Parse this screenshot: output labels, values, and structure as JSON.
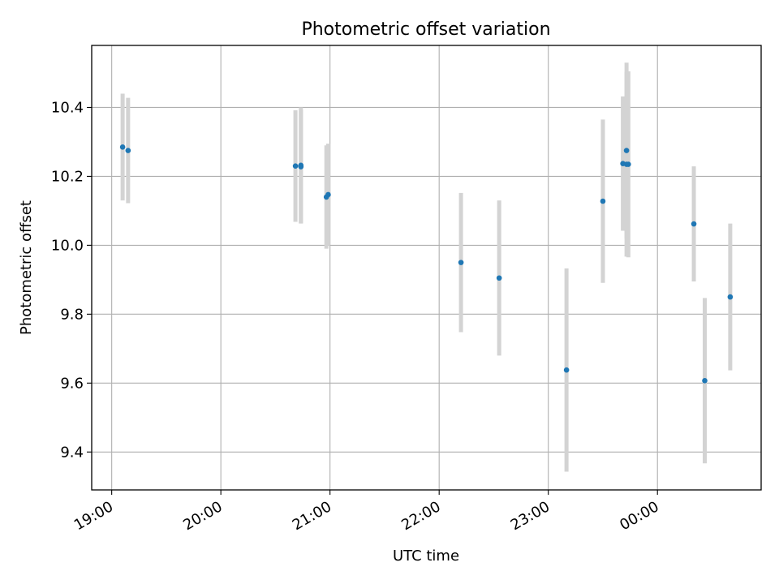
{
  "chart_data": {
    "type": "scatter",
    "title": "Photometric offset variation",
    "xlabel": "UTC time",
    "ylabel": "Photometric offset",
    "grid": true,
    "legend": "none",
    "x_ticks": [
      "19:00",
      "20:00",
      "21:00",
      "22:00",
      "23:00",
      "00:00"
    ],
    "y_ticks": [
      "9.4",
      "9.6",
      "9.8",
      "10.0",
      "10.2",
      "10.4"
    ],
    "xlim": [
      "18:49",
      "00:57"
    ],
    "ylim": [
      9.29,
      10.58
    ],
    "series": [
      {
        "marker_color": "#1f77b4",
        "errorbar_color": "#d3d3d3",
        "points": [
          {
            "t": "19:06",
            "y": 10.285,
            "err": 0.155
          },
          {
            "t": "19:09",
            "y": 10.275,
            "err": 0.153
          },
          {
            "t": "20:41",
            "y": 10.23,
            "err": 0.162
          },
          {
            "t": "20:44",
            "y": 10.232,
            "err": 0.168
          },
          {
            "t": "20:44",
            "y": 10.228,
            "err": 0.165
          },
          {
            "t": "20:58",
            "y": 10.14,
            "err": 0.15
          },
          {
            "t": "20:59",
            "y": 10.147,
            "err": 0.148
          },
          {
            "t": "22:12",
            "y": 9.95,
            "err": 0.202
          },
          {
            "t": "22:33",
            "y": 9.905,
            "err": 0.225
          },
          {
            "t": "23:10",
            "y": 9.638,
            "err": 0.295
          },
          {
            "t": "23:30",
            "y": 10.128,
            "err": 0.237
          },
          {
            "t": "23:41",
            "y": 10.237,
            "err": 0.195
          },
          {
            "t": "23:43",
            "y": 10.275,
            "err": 0.255
          },
          {
            "t": "23:43",
            "y": 10.235,
            "err": 0.268
          },
          {
            "t": "23:44",
            "y": 10.235,
            "err": 0.27
          },
          {
            "t": "00:20",
            "y": 10.062,
            "err": 0.167
          },
          {
            "t": "00:26",
            "y": 9.607,
            "err": 0.24
          },
          {
            "t": "00:40",
            "y": 9.85,
            "err": 0.213
          }
        ]
      }
    ]
  }
}
